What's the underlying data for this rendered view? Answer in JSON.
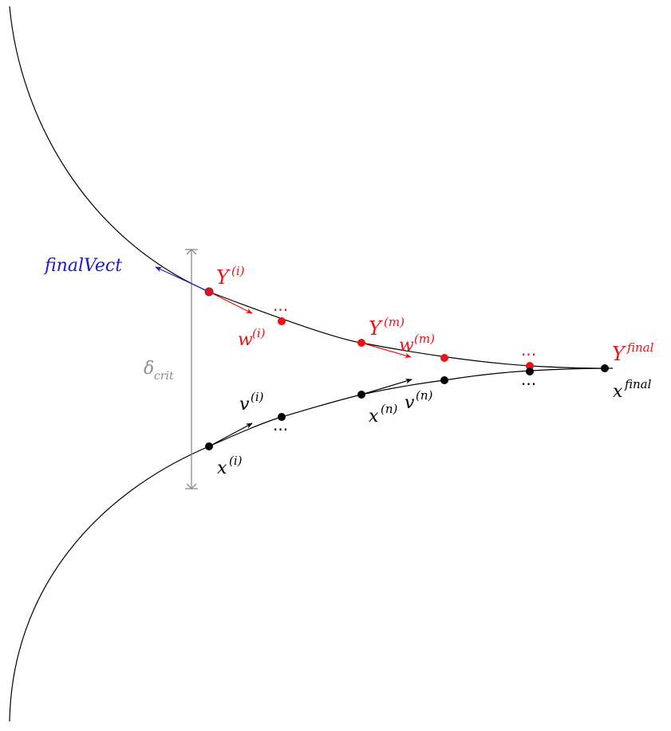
{
  "colors": {
    "curve": "#000000",
    "red": "#ee1111",
    "blue": "#1a1ad6",
    "gray": "#8a8a8a"
  },
  "labels": {
    "final_vect": "finalVect",
    "y_i_base": "Y",
    "y_i_sup": "(i)",
    "w_i_base": "w",
    "w_i_sup": "(i)",
    "red_dots_1": "...",
    "y_m_base": "Y",
    "y_m_sup": "(m)",
    "w_m_base": "w",
    "w_m_sup": "(m)",
    "red_dots_2": "...",
    "y_final_base": "Y",
    "y_final_sup": "final",
    "x_final_base": "x",
    "x_final_sup": "final",
    "black_dots_1": "...",
    "black_dots_2": "...",
    "v_i_base": "v",
    "v_i_sup": "(i)",
    "x_i_base": "x",
    "x_i_sup": "(i)",
    "x_n_base": "x",
    "x_n_sup": "(n)",
    "v_n_base": "v",
    "v_n_sup": "(n)",
    "delta_base": "δ",
    "delta_sub": "crit"
  }
}
